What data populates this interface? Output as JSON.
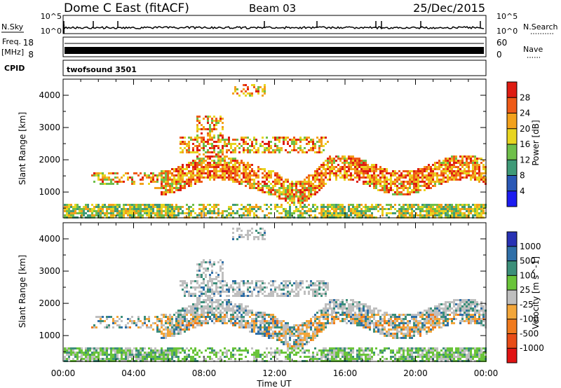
{
  "header": {
    "station": "Dome C East (fitACF)",
    "beam": "Beam 03",
    "date": "25/Dec/2015"
  },
  "top_panels": {
    "nsky": {
      "label": "N.Sky",
      "ticks": [
        "10^5",
        "10^0"
      ]
    },
    "nsearch": {
      "label": "N.Search",
      "ticks": [
        "10^5",
        "10^0"
      ]
    },
    "freq": {
      "label_line1": "Freq.",
      "label_line2": "[MHz]",
      "ticks": [
        "18",
        "8"
      ]
    },
    "nave": {
      "label": "Nave",
      "ticks": [
        "60",
        "0"
      ]
    },
    "cpid": {
      "label": "CPID",
      "mode": "twofsound 3501"
    }
  },
  "chart_data": [
    {
      "type": "heatmap",
      "name_key": "power",
      "ylabel": "Slant Range [km]",
      "xlabel": "",
      "yticks": [
        "1000",
        "2000",
        "3000",
        "4000"
      ],
      "ytick_values": [
        1000,
        2000,
        3000,
        4000
      ],
      "ylim": [
        200,
        4500
      ],
      "colorbar": {
        "label": "Power [dB]",
        "ticks": [
          "4",
          "8",
          "12",
          "16",
          "20",
          "24",
          "28"
        ],
        "colors": [
          "#1c1cf0",
          "#2a58b6",
          "#3f9a78",
          "#6fbf4a",
          "#e8d520",
          "#f3a11b",
          "#ee5a17",
          "#de1c12"
        ]
      }
    },
    {
      "type": "heatmap",
      "name_key": "velocity",
      "ylabel": "Slant Range [km]",
      "xlabel": "Time UT",
      "yticks": [
        "1000",
        "2000",
        "3000",
        "4000"
      ],
      "ytick_values": [
        1000,
        2000,
        3000,
        4000
      ],
      "ylim": [
        200,
        4500
      ],
      "xticks": [
        "00:00",
        "04:00",
        "08:00",
        "12:00",
        "16:00",
        "20:00",
        "00:00"
      ],
      "xlim_hours": [
        0,
        24
      ],
      "colorbar": {
        "label": "Velocity [m s^-1]",
        "ticks": [
          "1000",
          "500",
          "100",
          "25",
          "-25",
          "-100",
          "-500",
          "-1000"
        ],
        "colors": [
          "#2832b4",
          "#2f6fa8",
          "#3c8f7a",
          "#6ac43a",
          "#bfbfbf",
          "#f3a63a",
          "#f07a1e",
          "#e84c17",
          "#e01212"
        ]
      }
    }
  ]
}
